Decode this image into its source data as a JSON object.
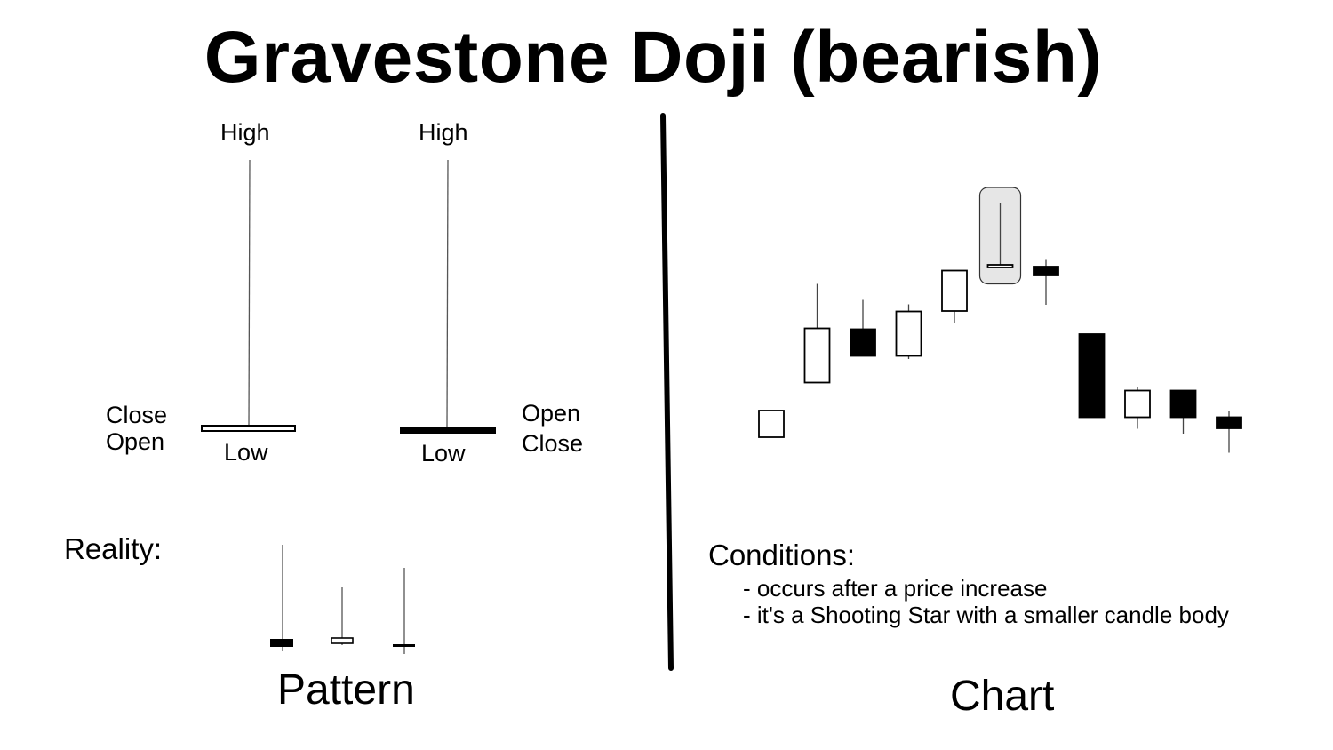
{
  "title": "Gravestone Doji (bearish)",
  "pattern": {
    "white_candle": {
      "high_label": "High",
      "low_label": "Low",
      "side_labels": [
        "Close",
        "Open"
      ],
      "color": "#ffffff"
    },
    "black_candle": {
      "high_label": "High",
      "low_label": "Low",
      "side_labels": [
        "Open",
        "Close"
      ],
      "color": "#000000"
    },
    "reality_label": "Reality:",
    "reality_examples": [
      {
        "body": "black",
        "wick": "upper"
      },
      {
        "body": "white",
        "wick": "upper"
      },
      {
        "body": "line",
        "wick": "upper"
      }
    ],
    "caption": "Pattern"
  },
  "chart": {
    "caption": "Chart",
    "highlight_color": "#e6e6e6",
    "chart_data": {
      "type": "candlestick",
      "price_scale": "unlabeled",
      "candles": [
        {
          "open": 15.0,
          "close": 21.0,
          "high": 21.0,
          "low": 15.0,
          "color": "white"
        },
        {
          "open": 27.3,
          "close": 39.5,
          "high": 49.5,
          "low": 27.3,
          "color": "white"
        },
        {
          "open": 39.3,
          "close": 33.3,
          "high": 45.9,
          "low": 33.3,
          "color": "black"
        },
        {
          "open": 33.3,
          "close": 43.3,
          "high": 44.9,
          "low": 32.6,
          "color": "white"
        },
        {
          "open": 43.4,
          "close": 52.5,
          "high": 52.5,
          "low": 40.6,
          "color": "white"
        },
        {
          "open": 53.3,
          "close": 53.8,
          "high": 67.6,
          "low": 53.1,
          "color": "white",
          "highlighted": true
        },
        {
          "open": 53.4,
          "close": 51.4,
          "high": 54.9,
          "low": 44.8,
          "color": "black"
        },
        {
          "open": 38.2,
          "close": 19.5,
          "high": 38.2,
          "low": 19.5,
          "color": "black"
        },
        {
          "open": 19.5,
          "close": 25.5,
          "high": 26.3,
          "low": 16.9,
          "color": "white"
        },
        {
          "open": 25.5,
          "close": 19.5,
          "high": 25.5,
          "low": 15.8,
          "color": "black"
        },
        {
          "open": 19.5,
          "close": 17.0,
          "high": 20.8,
          "low": 11.5,
          "color": "black"
        }
      ]
    },
    "conditions": {
      "heading": "Conditions:",
      "items": [
        "- occurs after a price increase",
        "- it's a Shooting Star with a smaller candle body"
      ]
    }
  }
}
